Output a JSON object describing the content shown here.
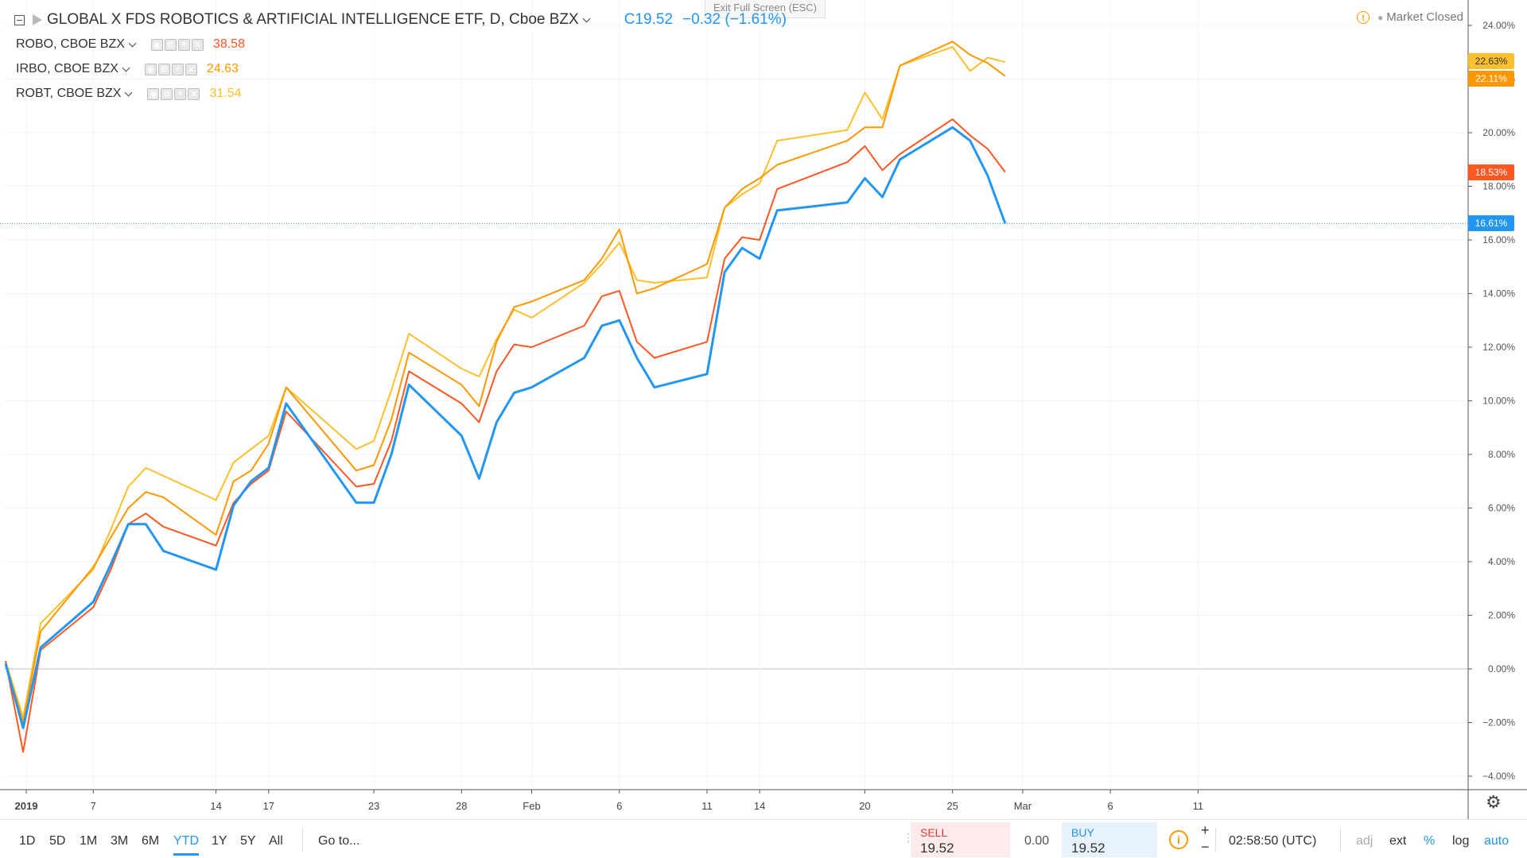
{
  "header": {
    "title": "GLOBAL X FDS ROBOTICS & ARTIFICIAL INTELLIGENCE ETF, D, Cboe BZX",
    "close_price": "C19.52",
    "change": "−0.32 (−1.61%)",
    "exit_fullscreen": "Exit Full Screen (ESC)",
    "market_status": "Market Closed"
  },
  "compare": [
    {
      "symbol": "ROBO, CBOE BZX",
      "value": "38.58",
      "color": "#ff5722"
    },
    {
      "symbol": "IRBO, CBOE BZX",
      "value": "24.63",
      "color": "#ff9800"
    },
    {
      "symbol": "ROBT, CBOE BZX",
      "value": "31.54",
      "color": "#fbc02d"
    }
  ],
  "price_tags": [
    {
      "label": "22.63%",
      "color": "#fbc02d",
      "text_color": "#333333",
      "value": 22.63
    },
    {
      "label": "22.11%",
      "color": "#ff9800",
      "text_color": "#ffffff",
      "value": 22.11
    },
    {
      "label": "18.53%",
      "color": "#ff5722",
      "text_color": "#ffffff",
      "value": 18.53
    },
    {
      "label": "16.61%",
      "color": "#2196f3",
      "text_color": "#ffffff",
      "value": 16.61
    }
  ],
  "chart_data": {
    "type": "line",
    "x": [
      "2019-01-02",
      "2019-01-03",
      "2019-01-04",
      "2019-01-07",
      "2019-01-08",
      "2019-01-09",
      "2019-01-10",
      "2019-01-11",
      "2019-01-14",
      "2019-01-15",
      "2019-01-16",
      "2019-01-17",
      "2019-01-18",
      "2019-01-22",
      "2019-01-23",
      "2019-01-24",
      "2019-01-25",
      "2019-01-28",
      "2019-01-29",
      "2019-01-30",
      "2019-01-31",
      "2019-02-01",
      "2019-02-04",
      "2019-02-05",
      "2019-02-06",
      "2019-02-07",
      "2019-02-08",
      "2019-02-11",
      "2019-02-12",
      "2019-02-13",
      "2019-02-14",
      "2019-02-15",
      "2019-02-19",
      "2019-02-20",
      "2019-02-21",
      "2019-02-22",
      "2019-02-25",
      "2019-02-26",
      "2019-02-27",
      "2019-02-28"
    ],
    "series": [
      {
        "name": "GLOBAL X FDS ROBOTICS & ARTIFICIAL INTELLIGENCE ETF",
        "color": "#2196f3",
        "width": 3,
        "values": [
          0.2,
          -2.2,
          0.8,
          2.5,
          3.9,
          5.4,
          5.4,
          4.4,
          3.7,
          6.1,
          7.0,
          7.5,
          9.9,
          6.2,
          6.2,
          8.0,
          10.6,
          8.7,
          7.1,
          9.2,
          10.3,
          10.5,
          11.6,
          12.8,
          13.0,
          11.6,
          10.5,
          11.0,
          14.8,
          15.7,
          15.3,
          17.1,
          17.4,
          18.3,
          17.6,
          19.0,
          20.2,
          19.7,
          18.4,
          16.61
        ]
      },
      {
        "name": "ROBO, CBOE BZX",
        "color": "#ff5722",
        "width": 2,
        "values": [
          0.3,
          -3.1,
          0.7,
          2.3,
          3.7,
          5.4,
          5.8,
          5.3,
          4.6,
          6.2,
          6.9,
          7.4,
          9.6,
          6.8,
          6.9,
          8.5,
          11.1,
          9.9,
          9.2,
          11.1,
          12.1,
          12.0,
          12.8,
          13.9,
          14.1,
          12.2,
          11.6,
          12.2,
          15.3,
          16.1,
          16.0,
          17.9,
          18.9,
          19.5,
          18.6,
          19.2,
          20.5,
          19.9,
          19.4,
          18.53
        ]
      },
      {
        "name": "IRBO, CBOE BZX",
        "color": "#ff9800",
        "width": 2,
        "values": [
          0.2,
          -2.0,
          1.4,
          3.8,
          4.9,
          6.0,
          6.6,
          6.4,
          5.0,
          7.0,
          7.4,
          8.4,
          10.5,
          7.4,
          7.6,
          9.3,
          11.8,
          10.6,
          9.8,
          12.2,
          13.5,
          13.7,
          14.5,
          15.3,
          16.4,
          14.0,
          14.2,
          15.1,
          17.2,
          17.9,
          18.3,
          18.8,
          19.7,
          20.2,
          20.2,
          22.5,
          23.4,
          22.9,
          22.6,
          22.11
        ]
      },
      {
        "name": "ROBT, CBOE BZX",
        "color": "#fbc02d",
        "width": 2,
        "values": [
          0.3,
          -1.8,
          1.7,
          3.7,
          5.2,
          6.8,
          7.5,
          7.2,
          6.3,
          7.7,
          8.2,
          8.7,
          10.5,
          8.2,
          8.5,
          10.4,
          12.5,
          11.2,
          10.9,
          12.3,
          13.4,
          13.1,
          14.4,
          15.1,
          15.9,
          14.5,
          14.4,
          14.6,
          17.2,
          17.7,
          18.1,
          19.7,
          20.1,
          21.5,
          20.5,
          22.5,
          23.2,
          22.3,
          22.8,
          22.63
        ]
      }
    ],
    "x_ticks": [
      "2019",
      "7",
      "14",
      "17",
      "23",
      "28",
      "Feb",
      "6",
      "11",
      "14",
      "20",
      "25",
      "Mar",
      "6",
      "11"
    ],
    "y_ticks": [
      "24.00%",
      "22.00%",
      "20.00%",
      "18.00%",
      "16.00%",
      "14.00%",
      "12.00%",
      "10.00%",
      "8.00%",
      "6.00%",
      "4.00%",
      "2.00%",
      "0.00%",
      "−2.00%",
      "−4.00%"
    ],
    "ylim": [
      -4.4,
      24.4
    ],
    "grid": true,
    "crosshair_value": 16.61
  },
  "bottom": {
    "ranges": [
      "1D",
      "5D",
      "1M",
      "3M",
      "6M",
      "YTD",
      "1Y",
      "5Y",
      "All"
    ],
    "active_range": "YTD",
    "goto": "Go to...",
    "sell_label": "SELL",
    "sell_price": "19.52",
    "spread": "0.00",
    "buy_label": "BUY",
    "buy_price": "19.52",
    "time": "02:58:50 (UTC)",
    "options": [
      "adj",
      "ext",
      "%",
      "log",
      "auto"
    ]
  }
}
